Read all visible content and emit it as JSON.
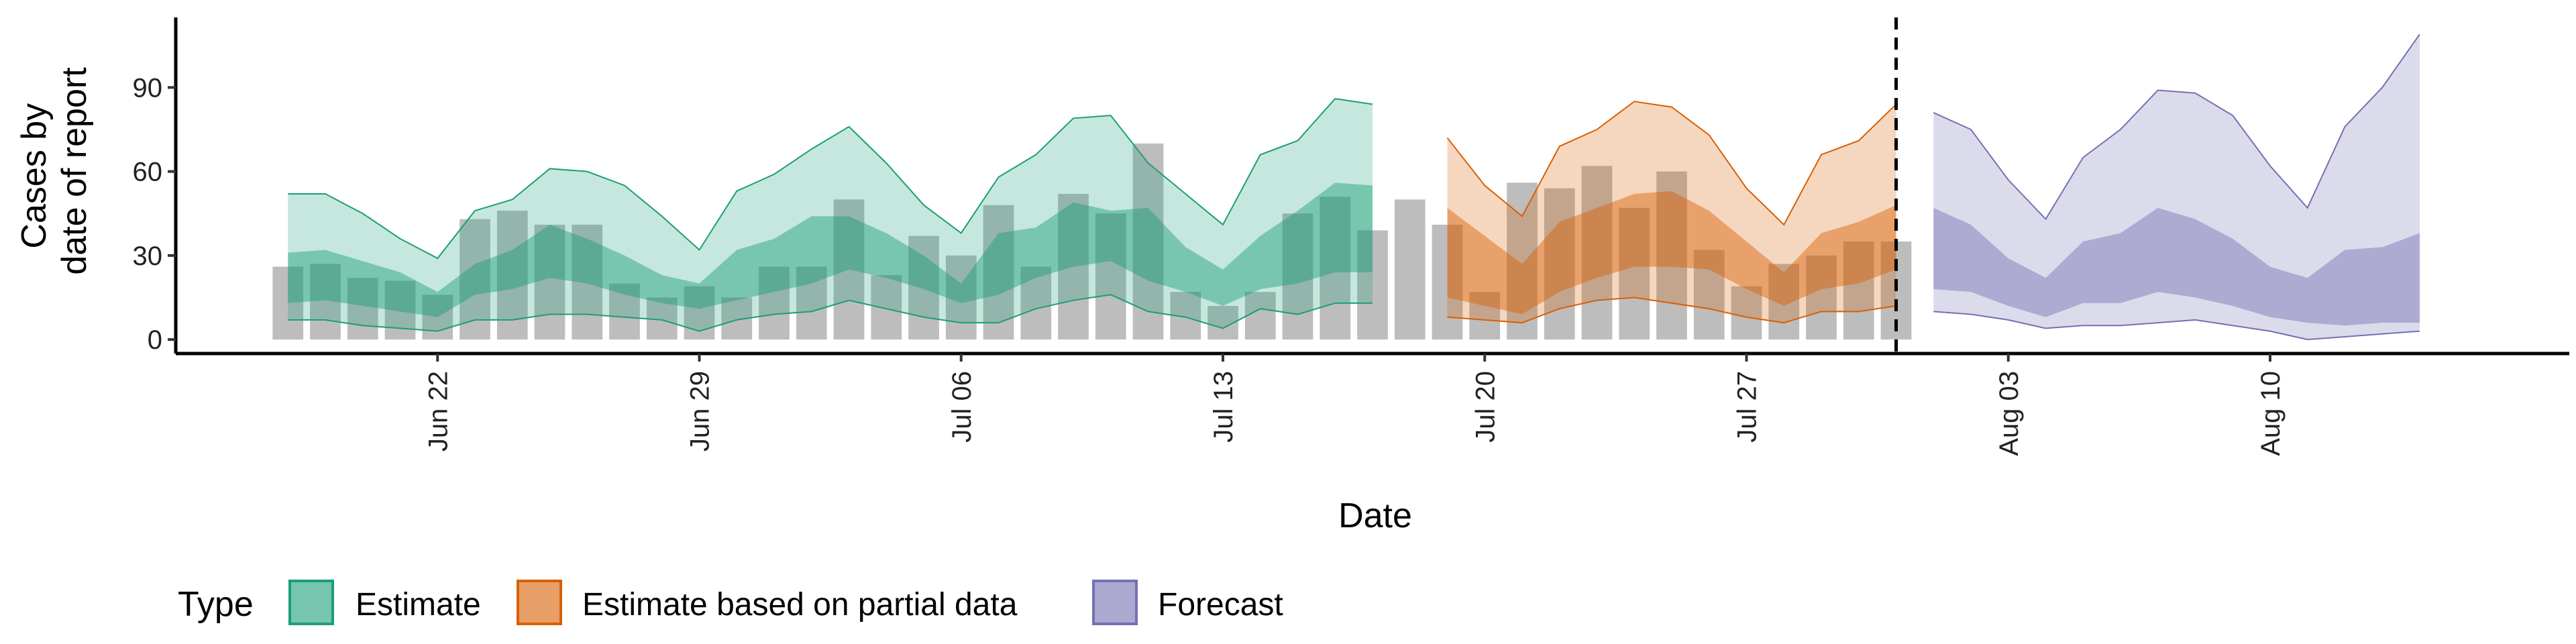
{
  "chart_data": {
    "type": "area",
    "xlabel": "Date",
    "ylabel_lines": [
      "Cases by",
      "date of report"
    ],
    "yticks": [
      0,
      30,
      60,
      90
    ],
    "ylim": [
      -5,
      115
    ],
    "xlim": [
      "2021-06-15",
      "2021-08-18"
    ],
    "xticks": [
      {
        "date": "2021-06-22",
        "label": "Jun 22"
      },
      {
        "date": "2021-06-29",
        "label": "Jun 29"
      },
      {
        "date": "2021-07-06",
        "label": "Jul 06"
      },
      {
        "date": "2021-07-13",
        "label": "Jul 13"
      },
      {
        "date": "2021-07-20",
        "label": "Jul 20"
      },
      {
        "date": "2021-07-27",
        "label": "Jul 27"
      },
      {
        "date": "2021-08-03",
        "label": "Aug 03"
      },
      {
        "date": "2021-08-10",
        "label": "Aug 10"
      }
    ],
    "forecast_start_line": "2021-07-31",
    "legend": {
      "title": "Type",
      "position": "bottom",
      "entries": [
        "Estimate",
        "Estimate based on partial data",
        "Forecast"
      ]
    },
    "reported_cases": {
      "dates": [
        "2021-06-18",
        "2021-06-19",
        "2021-06-20",
        "2021-06-21",
        "2021-06-22",
        "2021-06-23",
        "2021-06-24",
        "2021-06-25",
        "2021-06-26",
        "2021-06-27",
        "2021-06-28",
        "2021-06-29",
        "2021-06-30",
        "2021-07-01",
        "2021-07-02",
        "2021-07-03",
        "2021-07-04",
        "2021-07-05",
        "2021-07-06",
        "2021-07-07",
        "2021-07-08",
        "2021-07-09",
        "2021-07-10",
        "2021-07-11",
        "2021-07-12",
        "2021-07-13",
        "2021-07-14",
        "2021-07-15",
        "2021-07-16",
        "2021-07-17",
        "2021-07-18",
        "2021-07-19",
        "2021-07-20",
        "2021-07-21",
        "2021-07-22",
        "2021-07-23",
        "2021-07-24",
        "2021-07-25",
        "2021-07-26",
        "2021-07-27",
        "2021-07-28",
        "2021-07-29",
        "2021-07-30",
        "2021-07-31"
      ],
      "values": [
        26,
        27,
        22,
        21,
        16,
        43,
        46,
        41,
        41,
        20,
        15,
        19,
        15,
        26,
        26,
        50,
        23,
        37,
        30,
        48,
        26,
        52,
        45,
        70,
        17,
        12,
        17,
        45,
        51,
        39,
        50,
        41,
        17,
        56,
        54,
        62,
        47,
        60,
        32,
        19,
        27,
        30,
        35,
        35
      ]
    },
    "series": [
      {
        "name": "Estimate",
        "color": "#1b9e77",
        "dates": [
          "2021-06-18",
          "2021-06-19",
          "2021-06-20",
          "2021-06-21",
          "2021-06-22",
          "2021-06-23",
          "2021-06-24",
          "2021-06-25",
          "2021-06-26",
          "2021-06-27",
          "2021-06-28",
          "2021-06-29",
          "2021-06-30",
          "2021-07-01",
          "2021-07-02",
          "2021-07-03",
          "2021-07-04",
          "2021-07-05",
          "2021-07-06",
          "2021-07-07",
          "2021-07-08",
          "2021-07-09",
          "2021-07-10",
          "2021-07-11",
          "2021-07-12",
          "2021-07-13",
          "2021-07-14",
          "2021-07-15",
          "2021-07-16",
          "2021-07-17"
        ],
        "lower90": [
          7,
          7,
          5,
          4,
          3,
          7,
          7,
          9,
          9,
          8,
          7,
          3,
          7,
          9,
          10,
          14,
          11,
          8,
          6,
          6,
          11,
          14,
          16,
          10,
          8,
          4,
          11,
          9,
          13,
          13
        ],
        "lower50": [
          13,
          14,
          12,
          10,
          8,
          16,
          18,
          22,
          20,
          16,
          13,
          11,
          14,
          17,
          20,
          25,
          22,
          18,
          13,
          16,
          22,
          26,
          28,
          21,
          17,
          12,
          18,
          20,
          24,
          24
        ],
        "upper50": [
          31,
          32,
          28,
          24,
          17,
          27,
          32,
          41,
          36,
          30,
          23,
          20,
          32,
          36,
          44,
          44,
          38,
          30,
          20,
          38,
          40,
          49,
          46,
          47,
          33,
          25,
          37,
          46,
          56,
          55
        ],
        "upper90": [
          52,
          52,
          45,
          36,
          29,
          46,
          50,
          61,
          60,
          55,
          44,
          32,
          53,
          59,
          68,
          76,
          63,
          48,
          38,
          58,
          66,
          79,
          80,
          63,
          52,
          41,
          66,
          71,
          86,
          84
        ]
      },
      {
        "name": "Estimate based on partial data",
        "color": "#d95f02",
        "dates": [
          "2021-07-19",
          "2021-07-20",
          "2021-07-21",
          "2021-07-22",
          "2021-07-23",
          "2021-07-24",
          "2021-07-25",
          "2021-07-26",
          "2021-07-27",
          "2021-07-28",
          "2021-07-29",
          "2021-07-30",
          "2021-07-31"
        ],
        "lower90": [
          8,
          7,
          6,
          11,
          14,
          15,
          13,
          11,
          8,
          6,
          10,
          10,
          12
        ],
        "lower50": [
          15,
          12,
          9,
          17,
          22,
          26,
          26,
          25,
          18,
          12,
          18,
          20,
          25
        ],
        "upper50": [
          47,
          37,
          27,
          42,
          47,
          52,
          53,
          46,
          35,
          24,
          38,
          42,
          48
        ],
        "upper90": [
          72,
          55,
          44,
          69,
          75,
          85,
          83,
          73,
          54,
          41,
          66,
          71,
          84
        ]
      },
      {
        "name": "Forecast",
        "color": "#7570b3",
        "dates": [
          "2021-08-01",
          "2021-08-02",
          "2021-08-03",
          "2021-08-04",
          "2021-08-05",
          "2021-08-06",
          "2021-08-07",
          "2021-08-08",
          "2021-08-09",
          "2021-08-10",
          "2021-08-11",
          "2021-08-12",
          "2021-08-13",
          "2021-08-14"
        ],
        "lower90": [
          10,
          9,
          7,
          4,
          5,
          5,
          6,
          7,
          5,
          3,
          0,
          1,
          2,
          3
        ],
        "lower50": [
          18,
          17,
          12,
          8,
          13,
          13,
          17,
          15,
          12,
          8,
          6,
          5,
          6,
          6
        ],
        "upper50": [
          47,
          41,
          29,
          22,
          35,
          38,
          47,
          43,
          36,
          26,
          22,
          32,
          33,
          38
        ],
        "upper90": [
          81,
          75,
          57,
          43,
          65,
          75,
          89,
          88,
          80,
          62,
          47,
          76,
          90,
          109
        ]
      }
    ]
  }
}
